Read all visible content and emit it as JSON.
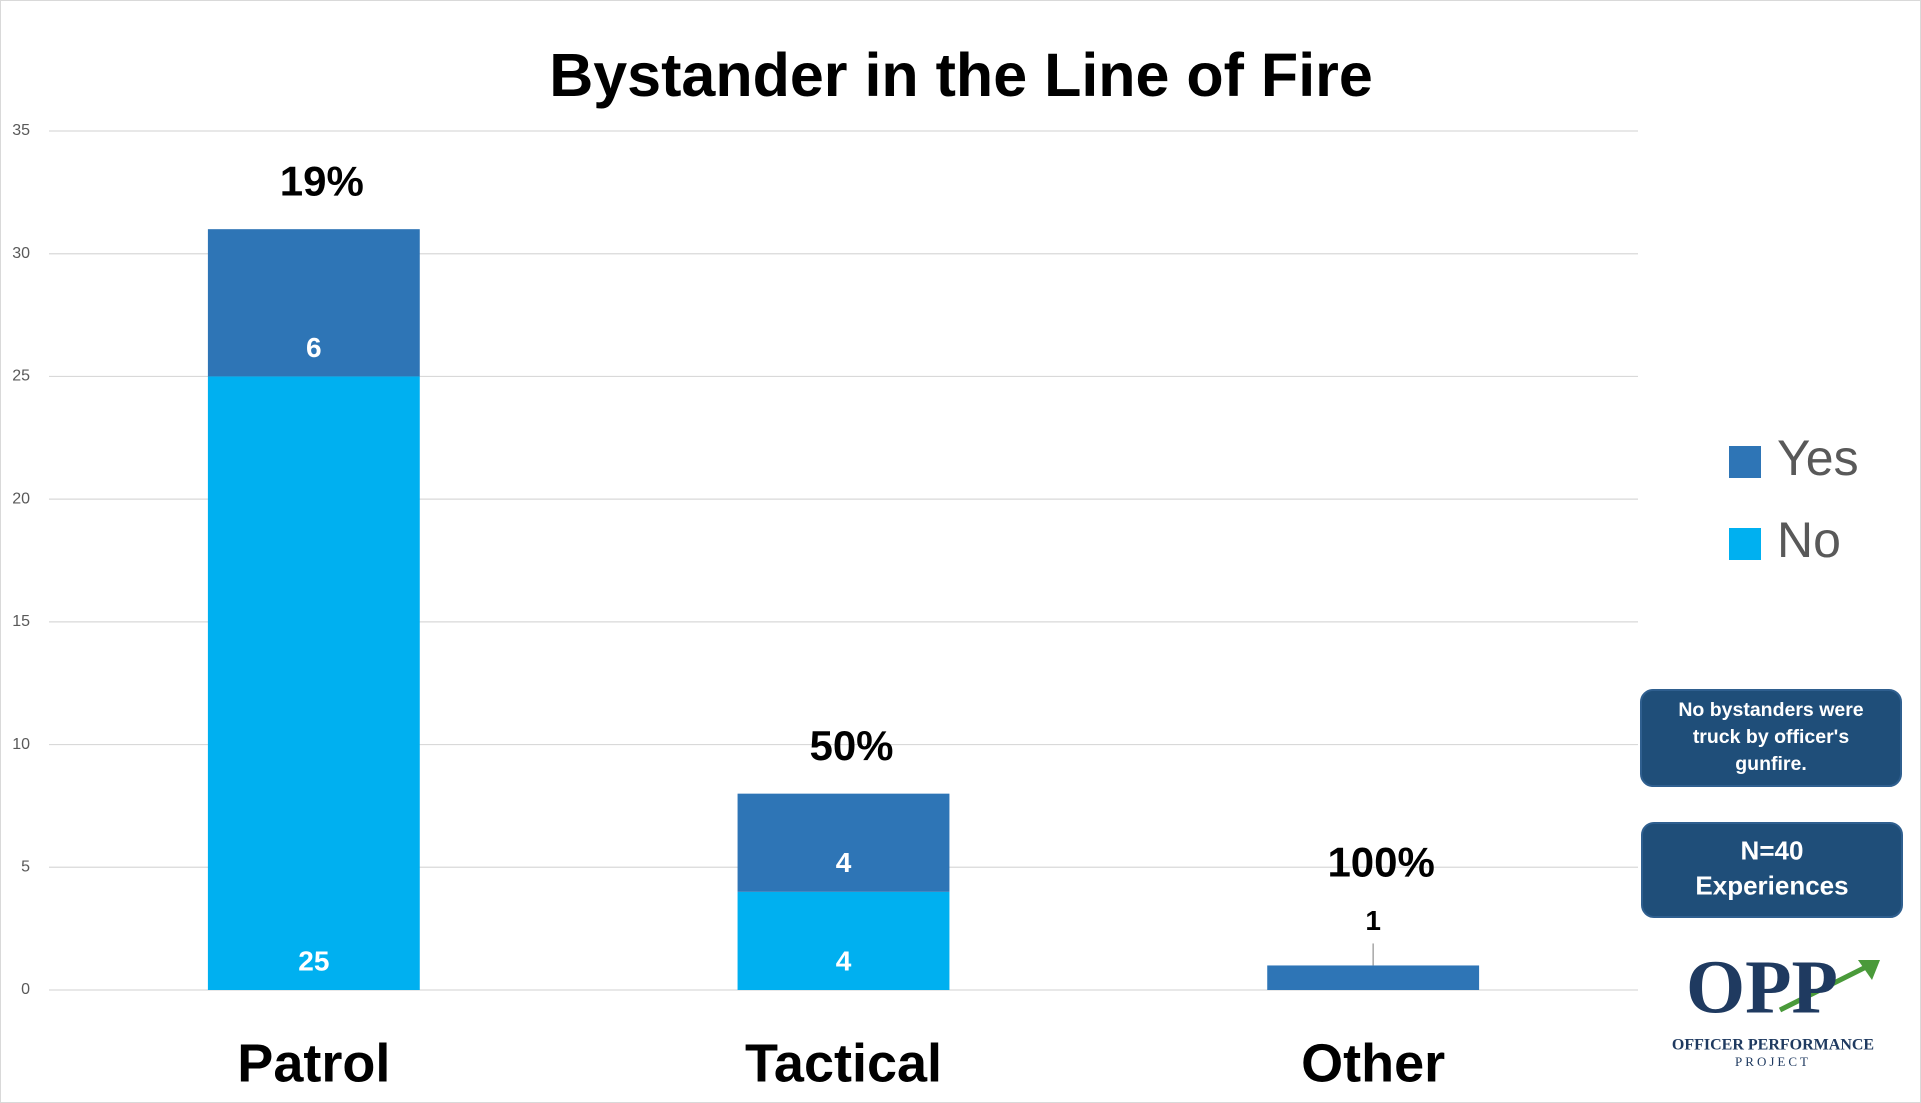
{
  "chart_data": {
    "type": "stacked_bar",
    "title": "Bystander in the Line of Fire",
    "categories": [
      "Patrol",
      "Tactical",
      "Other"
    ],
    "series": [
      {
        "name": "No",
        "color": "#00b0f0",
        "values": [
          25,
          4,
          null
        ]
      },
      {
        "name": "Yes",
        "color": "#2e75b6",
        "values": [
          6,
          4,
          1
        ]
      }
    ],
    "annotations": [
      "19%",
      "50%",
      "100%"
    ],
    "ylim": [
      0,
      35
    ],
    "yticks": [
      0,
      5,
      10,
      15,
      20,
      25,
      30,
      35
    ],
    "grid": true,
    "legend": "right"
  },
  "notes": [
    {
      "lines": [
        "No bystanders were",
        "truck by officer's",
        "gunfire."
      ]
    },
    {
      "lines": [
        "N=40",
        "Experiences"
      ]
    }
  ],
  "logo": {
    "mark": "OPP",
    "lines": [
      "OFFICER PERFORMANCE",
      "PROJECT"
    ]
  }
}
